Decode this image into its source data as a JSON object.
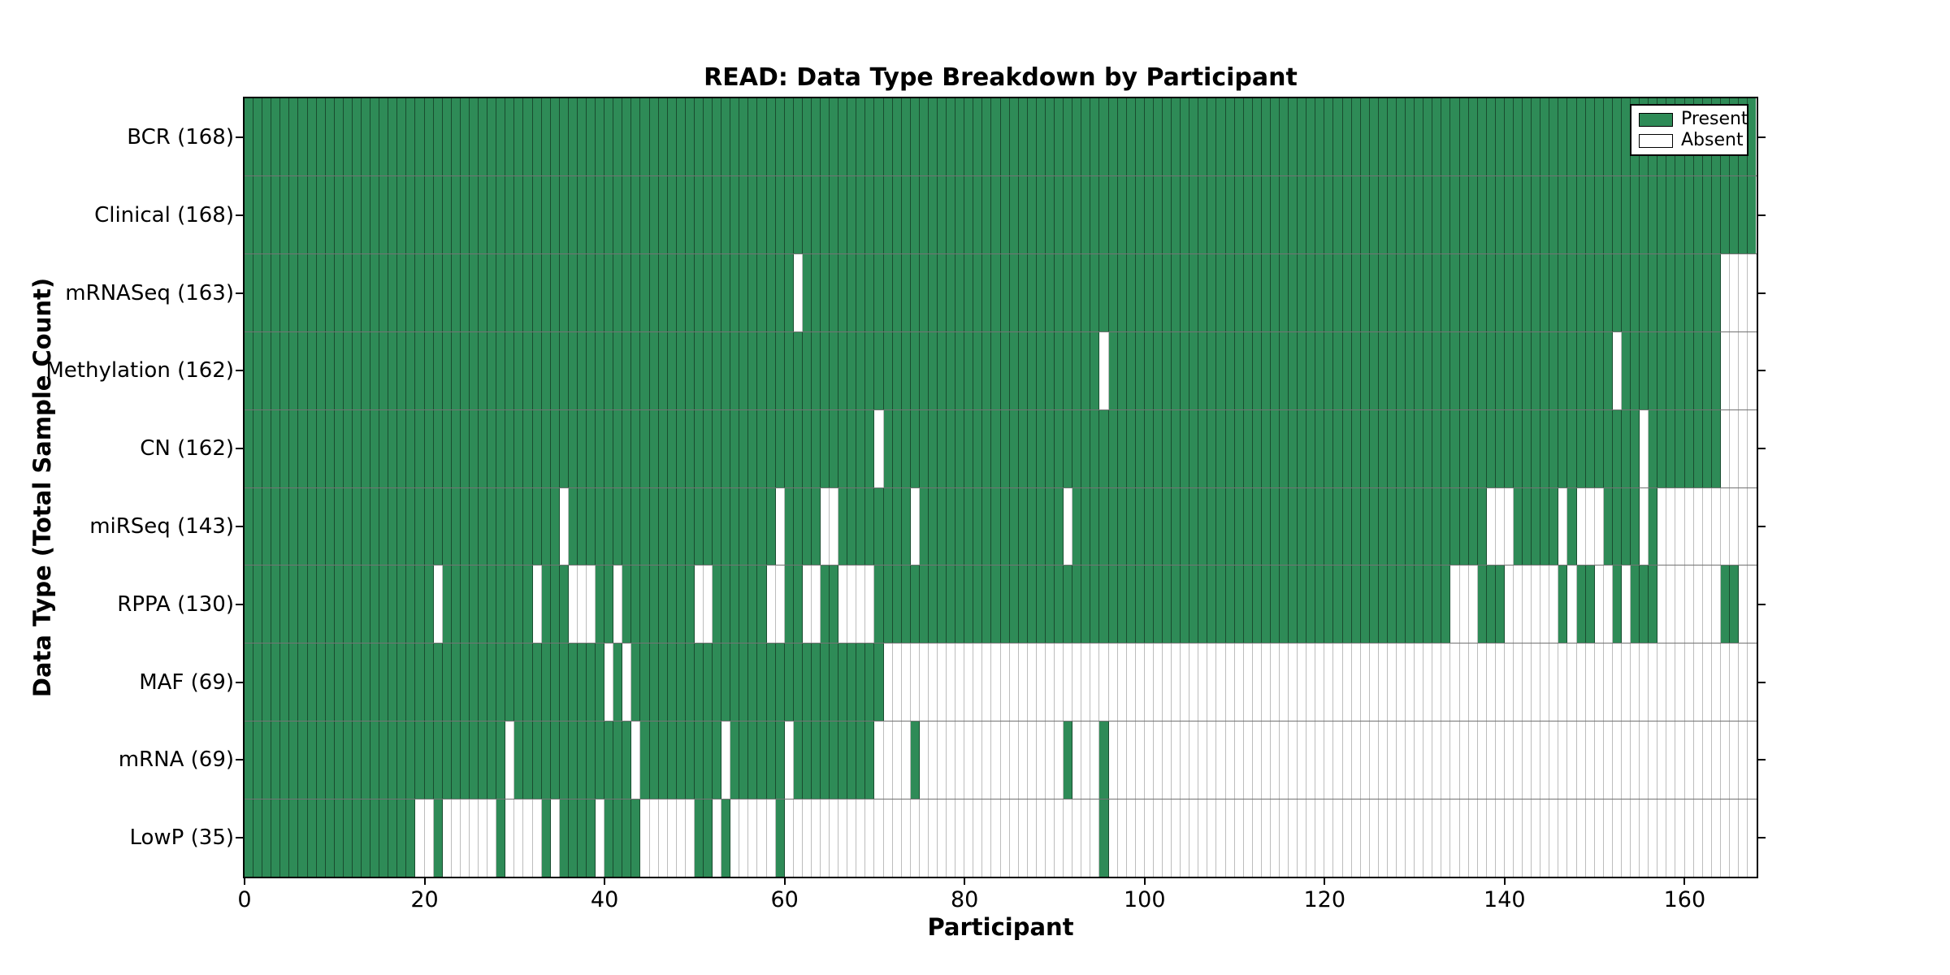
{
  "figure": {
    "title": "READ: Data Type Breakdown by Participant",
    "xlabel": "Participant",
    "ylabel": "Data Type (Total Sample Count)"
  },
  "legend": {
    "present_label": "Present",
    "absent_label": "Absent"
  },
  "colors": {
    "present": "#2e8b57",
    "absent": "#ffffff",
    "frame": "#000000"
  },
  "x_axis": {
    "tick_values": [
      0,
      20,
      40,
      60,
      80,
      100,
      120,
      140,
      160
    ],
    "tick_labels": [
      "0",
      "20",
      "40",
      "60",
      "80",
      "100",
      "120",
      "140",
      "160"
    ],
    "max": 168
  },
  "chart_data": {
    "type": "heatmap",
    "title": "READ: Data Type Breakdown by Participant",
    "xlabel": "Participant",
    "ylabel": "Data Type (Total Sample Count)",
    "x_range": [
      0,
      168
    ],
    "n_participants": 168,
    "grid": false,
    "legend_entries": [
      "Present",
      "Absent"
    ],
    "legend_position": "upper right",
    "cell_states": {
      "present": 1,
      "absent": 0
    },
    "rows": [
      {
        "label": "BCR (168)",
        "data_type": "BCR",
        "present_count": 168,
        "absent_ranges": []
      },
      {
        "label": "Clinical (168)",
        "data_type": "Clinical",
        "present_count": 168,
        "absent_ranges": []
      },
      {
        "label": "mRNASeq (163)",
        "data_type": "mRNASeq",
        "present_count": 163,
        "absent_ranges": [
          [
            61,
            61
          ],
          [
            164,
            167
          ]
        ]
      },
      {
        "label": "Methylation (162)",
        "data_type": "Methylation",
        "present_count": 162,
        "absent_ranges": [
          [
            95,
            95
          ],
          [
            152,
            152
          ],
          [
            164,
            167
          ]
        ]
      },
      {
        "label": "CN (162)",
        "data_type": "CN",
        "present_count": 162,
        "absent_ranges": [
          [
            70,
            70
          ],
          [
            155,
            155
          ],
          [
            164,
            167
          ]
        ]
      },
      {
        "label": "miRSeq (143)",
        "data_type": "miRSeq",
        "present_count": 143,
        "absent_ranges": [
          [
            35,
            35
          ],
          [
            59,
            59
          ],
          [
            64,
            65
          ],
          [
            74,
            74
          ],
          [
            91,
            91
          ],
          [
            138,
            140
          ],
          [
            146,
            146
          ],
          [
            148,
            150
          ],
          [
            155,
            155
          ],
          [
            157,
            167
          ]
        ]
      },
      {
        "label": "RPPA (130)",
        "data_type": "RPPA",
        "present_count": 130,
        "absent_ranges": [
          [
            21,
            21
          ],
          [
            32,
            32
          ],
          [
            36,
            38
          ],
          [
            41,
            41
          ],
          [
            50,
            51
          ],
          [
            58,
            59
          ],
          [
            62,
            63
          ],
          [
            66,
            69
          ],
          [
            134,
            136
          ],
          [
            140,
            145
          ],
          [
            147,
            147
          ],
          [
            150,
            151
          ],
          [
            153,
            153
          ],
          [
            157,
            163
          ],
          [
            166,
            167
          ]
        ]
      },
      {
        "label": "MAF (69)",
        "data_type": "MAF",
        "present_count": 69,
        "absent_ranges": [
          [
            40,
            40
          ],
          [
            42,
            42
          ],
          [
            71,
            167
          ]
        ]
      },
      {
        "label": "mRNA (69)",
        "data_type": "mRNA",
        "present_count": 69,
        "absent_ranges": [
          [
            29,
            29
          ],
          [
            43,
            43
          ],
          [
            53,
            53
          ],
          [
            60,
            60
          ],
          [
            70,
            73
          ],
          [
            75,
            90
          ],
          [
            92,
            94
          ],
          [
            96,
            167
          ]
        ]
      },
      {
        "label": "LowP (35)",
        "data_type": "LowP",
        "present_count": 35,
        "absent_ranges": [
          [
            19,
            20
          ],
          [
            22,
            27
          ],
          [
            29,
            32
          ],
          [
            34,
            34
          ],
          [
            39,
            39
          ],
          [
            44,
            49
          ],
          [
            52,
            52
          ],
          [
            54,
            58
          ],
          [
            60,
            94
          ],
          [
            96,
            167
          ]
        ]
      }
    ]
  }
}
